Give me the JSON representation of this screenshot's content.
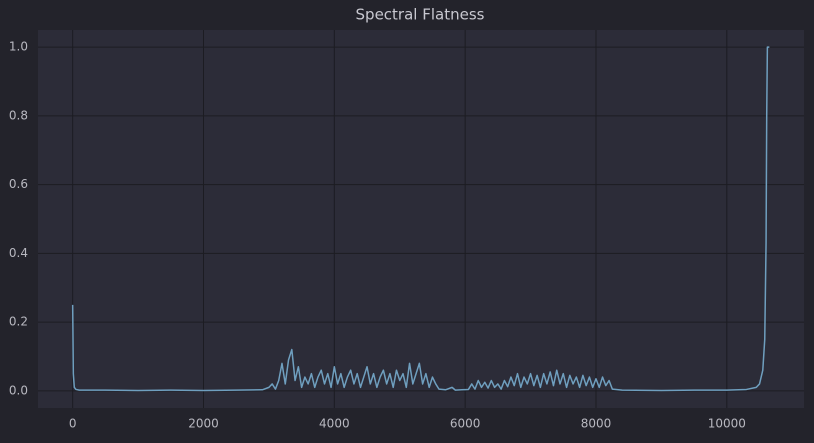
{
  "chart_data": {
    "type": "line",
    "title": "Spectral Flatness",
    "color": "#6f9fbf",
    "grid": true,
    "xlim": [
      -530,
      11180
    ],
    "ylim": [
      -0.05,
      1.05
    ],
    "xticks": [
      0,
      2000,
      4000,
      6000,
      8000,
      10000
    ],
    "yticks": [
      {
        "value": 0,
        "label": "0.0"
      },
      0.2,
      0.4,
      0.6,
      0.8,
      {
        "value": 1,
        "label": "1.0"
      }
    ],
    "x": [
      0,
      10,
      25,
      50,
      100,
      500,
      1000,
      1500,
      2000,
      2500,
      2900,
      3000,
      3050,
      3100,
      3150,
      3200,
      3250,
      3300,
      3350,
      3400,
      3450,
      3500,
      3550,
      3600,
      3650,
      3700,
      3750,
      3800,
      3850,
      3900,
      3950,
      4000,
      4050,
      4100,
      4150,
      4200,
      4250,
      4300,
      4350,
      4400,
      4450,
      4500,
      4550,
      4600,
      4650,
      4700,
      4750,
      4800,
      4850,
      4900,
      4950,
      5000,
      5050,
      5100,
      5150,
      5200,
      5250,
      5300,
      5350,
      5400,
      5450,
      5500,
      5550,
      5600,
      5700,
      5800,
      5850,
      5950,
      6050,
      6100,
      6150,
      6200,
      6250,
      6300,
      6350,
      6400,
      6450,
      6500,
      6550,
      6600,
      6650,
      6700,
      6750,
      6800,
      6850,
      6900,
      6950,
      7000,
      7050,
      7100,
      7150,
      7200,
      7250,
      7300,
      7350,
      7400,
      7450,
      7500,
      7550,
      7600,
      7650,
      7700,
      7750,
      7800,
      7850,
      7900,
      7950,
      8000,
      8050,
      8100,
      8150,
      8200,
      8250,
      8400,
      9000,
      9500,
      10000,
      10300,
      10450,
      10500,
      10550,
      10580,
      10600,
      10610,
      10620,
      10650
    ],
    "values": [
      0.25,
      0.05,
      0.01,
      0.004,
      0.002,
      0.002,
      0.001,
      0.002,
      0.001,
      0.002,
      0.003,
      0.01,
      0.02,
      0.005,
      0.03,
      0.08,
      0.02,
      0.09,
      0.12,
      0.03,
      0.07,
      0.01,
      0.04,
      0.02,
      0.05,
      0.01,
      0.04,
      0.06,
      0.02,
      0.05,
      0.01,
      0.07,
      0.02,
      0.05,
      0.01,
      0.04,
      0.06,
      0.02,
      0.05,
      0.01,
      0.04,
      0.07,
      0.02,
      0.05,
      0.01,
      0.04,
      0.06,
      0.02,
      0.05,
      0.01,
      0.06,
      0.03,
      0.05,
      0.01,
      0.08,
      0.02,
      0.05,
      0.08,
      0.02,
      0.05,
      0.01,
      0.04,
      0.02,
      0.005,
      0.003,
      0.01,
      0.002,
      0.003,
      0.004,
      0.02,
      0.005,
      0.03,
      0.01,
      0.025,
      0.008,
      0.03,
      0.01,
      0.02,
      0.005,
      0.03,
      0.012,
      0.04,
      0.015,
      0.05,
      0.01,
      0.04,
      0.02,
      0.05,
      0.015,
      0.045,
      0.01,
      0.05,
      0.02,
      0.055,
      0.015,
      0.06,
      0.02,
      0.05,
      0.01,
      0.045,
      0.02,
      0.04,
      0.01,
      0.045,
      0.015,
      0.04,
      0.01,
      0.035,
      0.01,
      0.04,
      0.015,
      0.03,
      0.005,
      0.002,
      0.001,
      0.002,
      0.002,
      0.004,
      0.01,
      0.02,
      0.06,
      0.15,
      0.43,
      0.8,
      1.0,
      1.0
    ]
  }
}
